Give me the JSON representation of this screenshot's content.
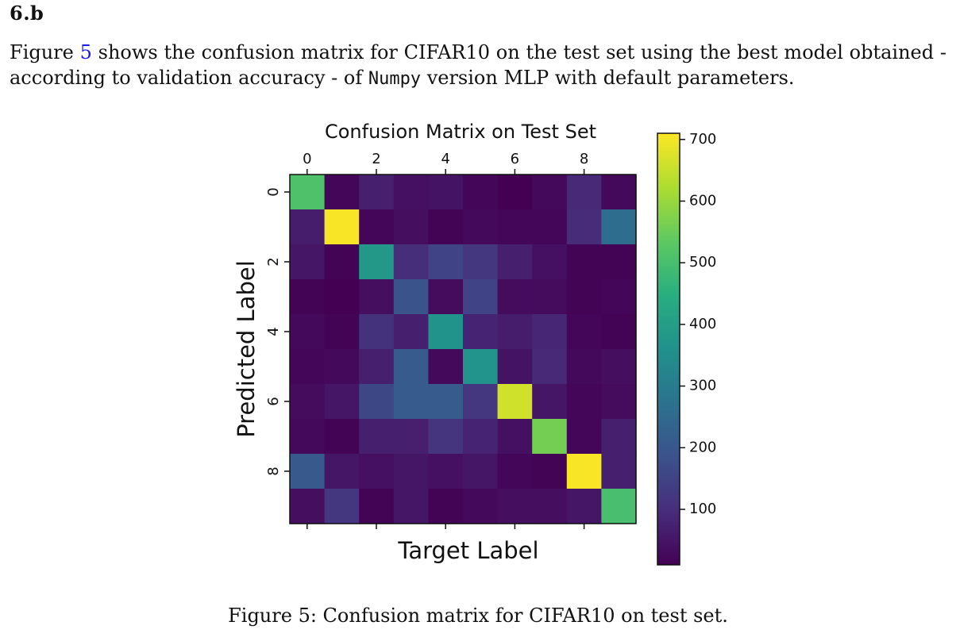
{
  "heading": "6.b",
  "paragraph": {
    "before_ref": "Figure ",
    "ref": "5",
    "after_ref": " shows the confusion matrix for CIFAR10 on the test set using the best model obtained - according to validation accuracy - of ",
    "code": "Numpy",
    "after_code": " version MLP with default parameters."
  },
  "caption": "Figure 5: Confusion matrix for CIFAR10 on test set.",
  "chart_data": {
    "type": "heatmap",
    "title": "Confusion Matrix on Test Set",
    "xlabel": "Target Label",
    "ylabel": "Predicted Label",
    "x_ticks": [
      "0",
      "2",
      "4",
      "6",
      "8"
    ],
    "y_ticks": [
      "0",
      "2",
      "4",
      "6",
      "8"
    ],
    "colorbar_ticks": [
      "100",
      "200",
      "300",
      "400",
      "500",
      "600",
      "700"
    ],
    "colorbar_range": [
      10,
      710
    ],
    "colormap": "viridis",
    "matrix": [
      [
        510,
        20,
        70,
        40,
        45,
        20,
        10,
        25,
        90,
        25
      ],
      [
        65,
        705,
        20,
        35,
        15,
        25,
        20,
        20,
        95,
        260
      ],
      [
        50,
        15,
        380,
        100,
        150,
        120,
        70,
        40,
        15,
        15
      ],
      [
        15,
        10,
        35,
        190,
        30,
        150,
        30,
        30,
        15,
        20
      ],
      [
        25,
        15,
        110,
        70,
        365,
        80,
        65,
        85,
        20,
        15
      ],
      [
        20,
        25,
        70,
        210,
        25,
        370,
        45,
        90,
        25,
        35
      ],
      [
        30,
        50,
        160,
        210,
        210,
        120,
        660,
        50,
        20,
        30
      ],
      [
        25,
        15,
        70,
        70,
        115,
        80,
        40,
        560,
        20,
        70
      ],
      [
        205,
        50,
        40,
        50,
        40,
        50,
        20,
        15,
        705,
        70
      ],
      [
        35,
        120,
        15,
        50,
        15,
        25,
        35,
        35,
        50,
        500
      ]
    ]
  }
}
